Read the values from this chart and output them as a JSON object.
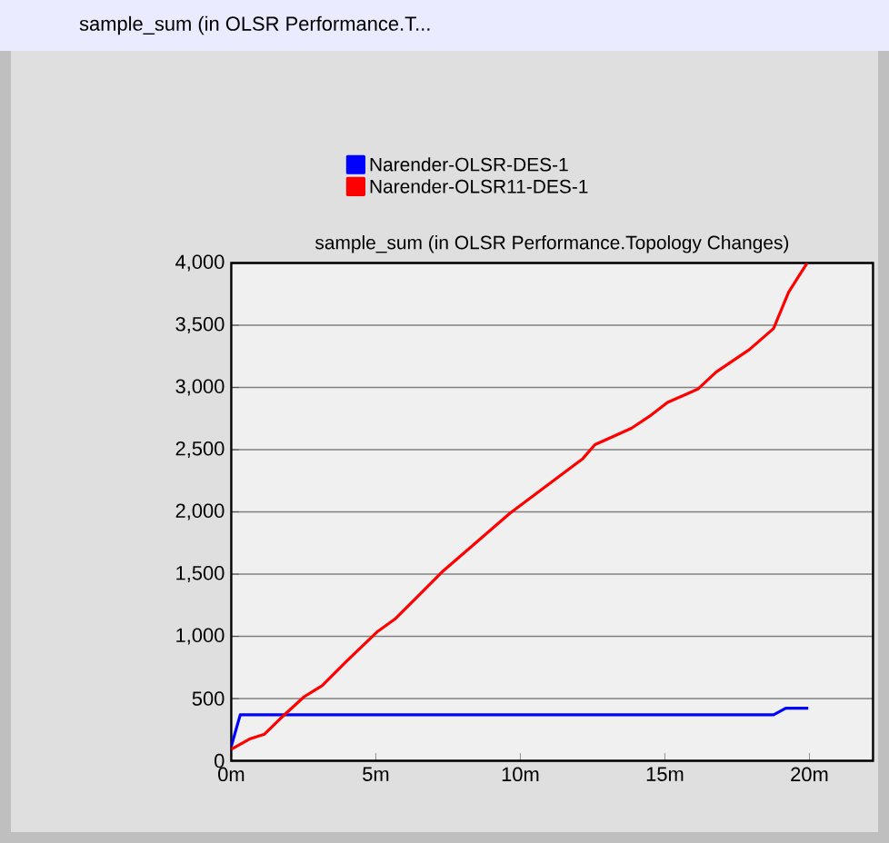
{
  "chart_data": {
    "type": "line",
    "title": "sample_sum (in OLSR Performance.T...",
    "subtitle": "sample_sum (in OLSR Performance.Topology Changes)",
    "xlim": [
      0,
      22.2
    ],
    "ylim": [
      0,
      4000
    ],
    "xticks": [
      {
        "value": 0,
        "label": "0m"
      },
      {
        "value": 5,
        "label": "5m"
      },
      {
        "value": 10,
        "label": "10m"
      },
      {
        "value": 15,
        "label": "15m"
      },
      {
        "value": 20,
        "label": "20m"
      }
    ],
    "yticks": [
      0,
      500,
      {
        "value": 1000,
        "label": "1,000"
      },
      {
        "value": 1500,
        "label": "1,500"
      },
      {
        "value": 2000,
        "label": "2,000"
      },
      {
        "value": 2500,
        "label": "2,500"
      },
      {
        "value": 3000,
        "label": "3,000"
      },
      {
        "value": 3500,
        "label": "3,500"
      },
      {
        "value": 4000,
        "label": "4,000"
      }
    ],
    "grid": "y",
    "legend": "top left",
    "marker": "none",
    "line_style": "solid",
    "series": [
      {
        "name": "Narender-OLSR-DES-1",
        "color": "#0000ff",
        "x": [
          0,
          0.31,
          18.76,
          19.18,
          19.96
        ],
        "values": [
          117,
          370,
          370,
          423,
          423
        ]
      },
      {
        "name": "Narender-OLSR11-DES-1",
        "color": "#ff0000",
        "x": [
          0,
          0.63,
          1.15,
          1.68,
          2.52,
          3.14,
          3.98,
          5.07,
          5.66,
          6.29,
          7.34,
          9.64,
          12.16,
          12.58,
          13.84,
          14.47,
          15.09,
          16.14,
          16.77,
          17.92,
          18.76,
          19.28,
          19.92
        ],
        "values": [
          92,
          175,
          214,
          336,
          515,
          603,
          798,
          1041,
          1139,
          1285,
          1528,
          1990,
          2428,
          2540,
          2672,
          2769,
          2880,
          2987,
          3124,
          3304,
          3474,
          3766,
          4000
        ]
      }
    ]
  }
}
